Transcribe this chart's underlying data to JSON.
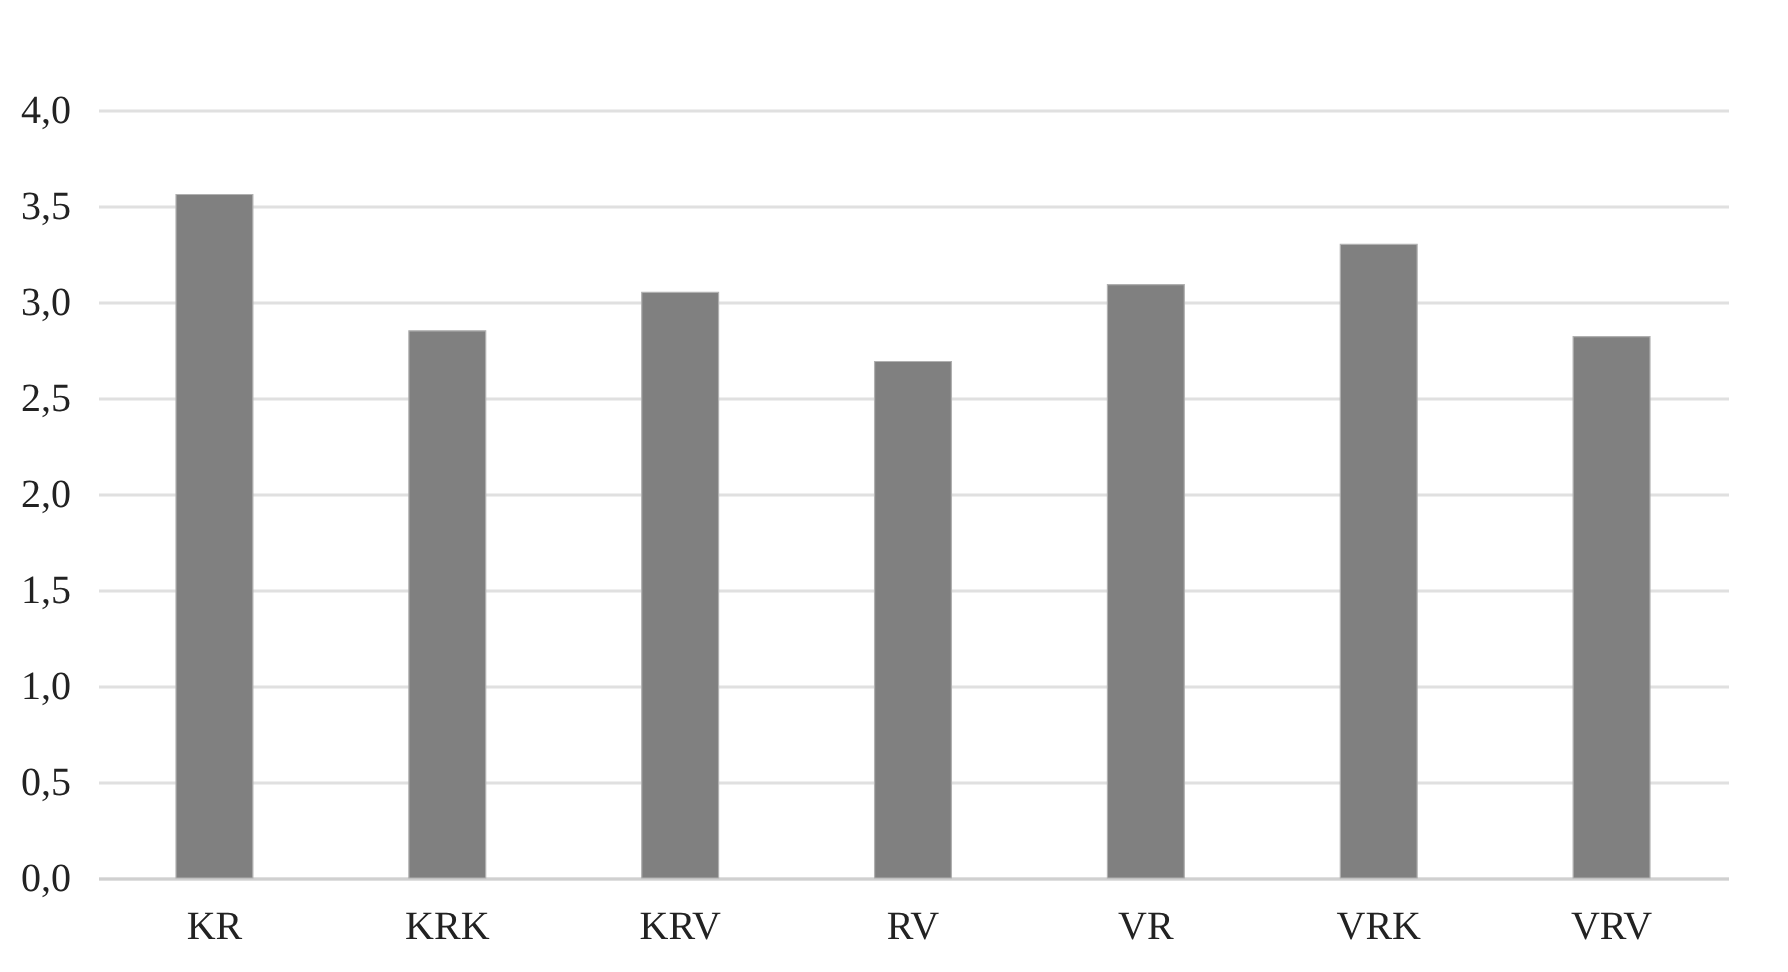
{
  "chart_data": {
    "type": "bar",
    "categories": [
      "KR",
      "KRK",
      "KRV",
      "RV",
      "VR",
      "VRK",
      "VRV"
    ],
    "values": [
      3.56,
      2.85,
      3.05,
      2.69,
      3.09,
      3.3,
      2.82
    ],
    "color": "#808080",
    "ylim": [
      0,
      4
    ],
    "yticks": [
      {
        "value": 0,
        "label": "0,0"
      },
      {
        "value": 0.5,
        "label": "0,5"
      },
      {
        "value": 1,
        "label": "1,0"
      },
      {
        "value": 1.5,
        "label": "1,5"
      },
      {
        "value": 2,
        "label": "2,0"
      },
      {
        "value": 2.5,
        "label": "2,5"
      },
      {
        "value": 3,
        "label": "3,0"
      },
      {
        "value": 3.5,
        "label": "3,5"
      },
      {
        "value": 4,
        "label": "4,0"
      }
    ],
    "grid": "y"
  }
}
